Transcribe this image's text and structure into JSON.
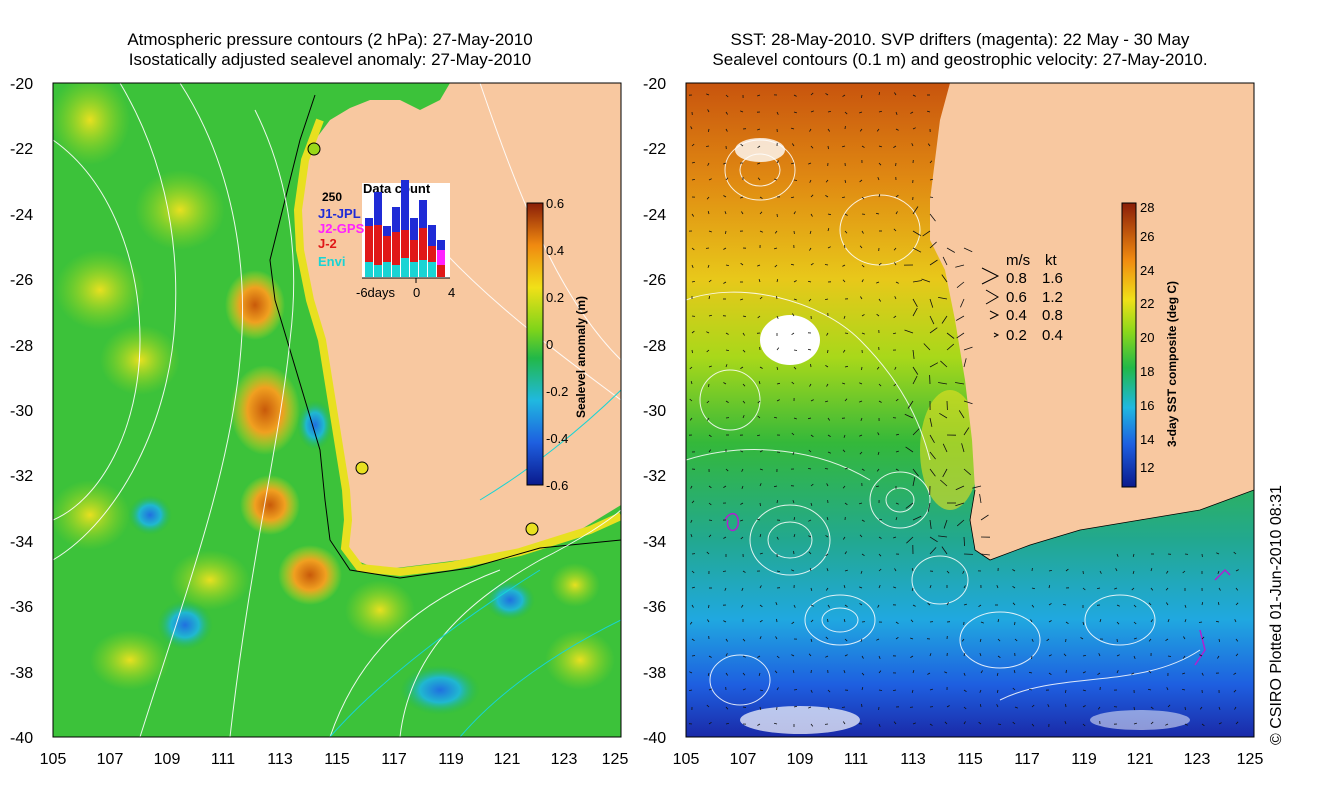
{
  "left_panel": {
    "title_line1": "Atmospheric pressure contours (2 hPa): 27-May-2010",
    "title_line2": "Isostatically adjusted sealevel anomaly: 27-May-2010",
    "colorbar": {
      "label": "Sealevel anomaly (m)",
      "ticks": [
        "0.6",
        "0.4",
        "0.2",
        "0",
        "-0.2",
        "-0.4",
        "-0.6"
      ]
    },
    "inset": {
      "title": "Data count",
      "ymax_label": "250",
      "legend": [
        {
          "label": "J1-JPL",
          "color": "#1f2bd6"
        },
        {
          "label": "J2-GPS",
          "color": "#ff22ff"
        },
        {
          "label": "J-2",
          "color": "#e01818"
        },
        {
          "label": "Envi",
          "color": "#19d4d4"
        }
      ],
      "xlabel_left": "-6days",
      "xlabel_mid": "0",
      "xlabel_right": "4"
    }
  },
  "right_panel": {
    "title_line1": "SST: 28-May-2010. SVP drifters (magenta): 22 May - 30 May",
    "title_line2": "Sealevel contours (0.1 m) and geostrophic velocity: 27-May-2010.",
    "colorbar": {
      "label": "3-day SST composite (deg C)",
      "ticks": [
        "28",
        "26",
        "24",
        "22",
        "20",
        "18",
        "16",
        "14",
        "12"
      ]
    },
    "velocity_legend": {
      "header_ms": "m/s",
      "header_kt": "kt",
      "rows": [
        {
          "ms": "0.8",
          "kt": "1.6"
        },
        {
          "ms": "0.6",
          "kt": "1.2"
        },
        {
          "ms": "0.4",
          "kt": "0.8"
        },
        {
          "ms": "0.2",
          "kt": "0.4"
        }
      ]
    }
  },
  "axes": {
    "y_ticks": [
      "-20",
      "-22",
      "-24",
      "-26",
      "-28",
      "-30",
      "-32",
      "-34",
      "-36",
      "-38",
      "-40"
    ],
    "x_ticks": [
      "105",
      "107",
      "109",
      "111",
      "113",
      "115",
      "117",
      "119",
      "121",
      "123",
      "125"
    ]
  },
  "copyright": "© CSIRO Plotted 01-Jun-2010 08:31",
  "chart_data": [
    {
      "type": "heatmap",
      "title": "Atmospheric pressure contours (2 hPa): 27-May-2010 / Isostatically adjusted sealevel anomaly: 27-May-2010",
      "xlabel": "",
      "ylabel": "",
      "xlim": [
        105,
        125
      ],
      "ylim": [
        -40,
        -20
      ],
      "colorbar_label": "Sealevel anomaly (m)",
      "colorbar_range": [
        -0.6,
        0.6
      ],
      "inset_bar_chart": {
        "title": "Data count",
        "ymax": 250,
        "x_range_days": [
          -6,
          4
        ],
        "series": [
          "J1-JPL",
          "J2-GPS",
          "J-2",
          "Envi"
        ]
      }
    },
    {
      "type": "heatmap",
      "title": "SST: 28-May-2010. SVP drifters (magenta): 22 May - 30 May / Sealevel contours (0.1 m) and geostrophic velocity: 27-May-2010.",
      "xlabel": "",
      "ylabel": "",
      "xlim": [
        105,
        125
      ],
      "ylim": [
        -40,
        -20
      ],
      "colorbar_label": "3-day SST composite (deg C)",
      "colorbar_range": [
        11,
        28
      ],
      "velocity_scale": [
        {
          "ms": 0.8,
          "kt": 1.6
        },
        {
          "ms": 0.6,
          "kt": 1.2
        },
        {
          "ms": 0.4,
          "kt": 0.8
        },
        {
          "ms": 0.2,
          "kt": 0.4
        }
      ]
    }
  ]
}
